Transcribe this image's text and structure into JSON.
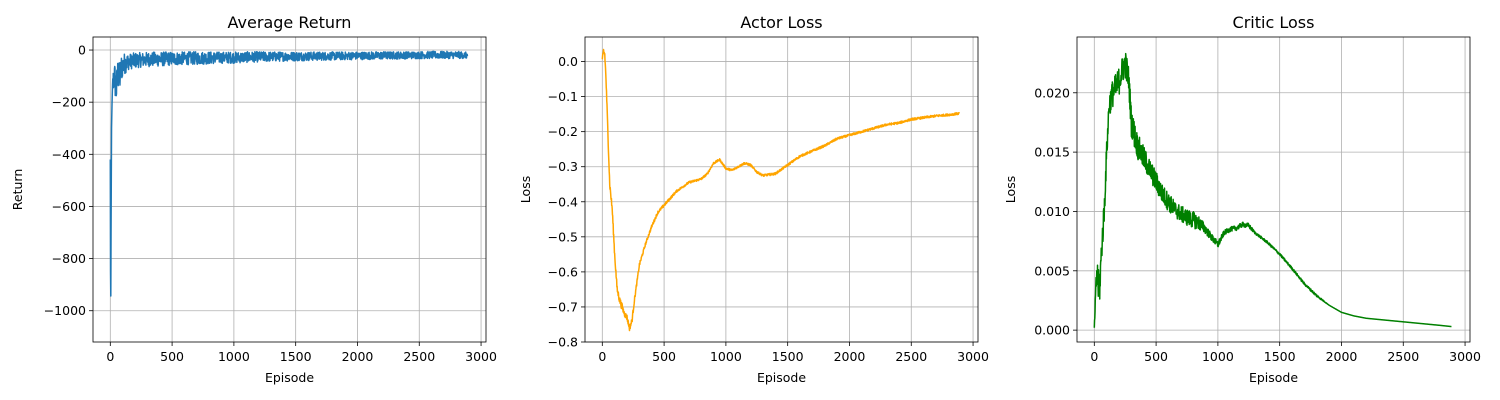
{
  "chart_data": [
    {
      "type": "line",
      "title": "Average Return",
      "xlabel": "Episode",
      "ylabel": "Return",
      "xlim": [
        -140,
        3040
      ],
      "ylim": [
        -1120,
        50
      ],
      "xticks": [
        0,
        500,
        1000,
        1500,
        2000,
        2500,
        3000
      ],
      "yticks": [
        0,
        -200,
        -400,
        -600,
        -800,
        -1000
      ],
      "ytick_labels": [
        "0",
        "−200",
        "−400",
        "−600",
        "−800",
        "−1000"
      ],
      "grid": true,
      "color": "#1f77b4",
      "series": [
        {
          "x": [
            0,
            3,
            6,
            10,
            15,
            20,
            30,
            40,
            50,
            60,
            75,
            90,
            100,
            120,
            150,
            200,
            250,
            300,
            400,
            500,
            600,
            700,
            800,
            900,
            1000,
            1200,
            1400,
            1600,
            1800,
            2000,
            2200,
            2400,
            2600,
            2800,
            2890
          ],
          "y": [
            -420,
            -1065,
            -700,
            -300,
            -180,
            -130,
            -100,
            -120,
            -150,
            -90,
            -110,
            -70,
            -60,
            -50,
            -45,
            -40,
            -38,
            -36,
            -35,
            -33,
            -32,
            -31,
            -30,
            -29,
            -29,
            -26,
            -25,
            -24,
            -23,
            -22,
            -21,
            -20,
            -19,
            -19,
            -20
          ],
          "noise": [
            0,
            0,
            0,
            0,
            0,
            40,
            60,
            70,
            70,
            60,
            60,
            55,
            45,
            40,
            30,
            30,
            28,
            28,
            28,
            26,
            25,
            25,
            24,
            22,
            22,
            20,
            18,
            17,
            16,
            15,
            15,
            14,
            14,
            14,
            12
          ]
        }
      ]
    },
    {
      "type": "line",
      "title": "Actor Loss",
      "xlabel": "Episode",
      "ylabel": "Loss",
      "xlim": [
        -140,
        3040
      ],
      "ylim": [
        -0.8,
        0.07
      ],
      "xticks": [
        0,
        500,
        1000,
        1500,
        2000,
        2500,
        3000
      ],
      "yticks": [
        0.0,
        -0.1,
        -0.2,
        -0.3,
        -0.4,
        -0.5,
        -0.6,
        -0.7,
        -0.8
      ],
      "ytick_labels": [
        "0.0",
        "−0.1",
        "−0.2",
        "−0.3",
        "−0.4",
        "−0.5",
        "−0.6",
        "−0.7",
        "−0.8"
      ],
      "grid": true,
      "color": "#ffa500",
      "series": [
        {
          "x": [
            0,
            10,
            20,
            30,
            45,
            60,
            80,
            100,
            120,
            140,
            160,
            180,
            200,
            220,
            240,
            260,
            280,
            300,
            350,
            400,
            450,
            500,
            600,
            700,
            800,
            850,
            900,
            950,
            1000,
            1050,
            1100,
            1150,
            1200,
            1250,
            1300,
            1400,
            1500,
            1600,
            1700,
            1800,
            1900,
            2000,
            2100,
            2200,
            2300,
            2400,
            2500,
            2600,
            2700,
            2800,
            2890
          ],
          "y": [
            0.0,
            0.03,
            0.02,
            -0.05,
            -0.2,
            -0.35,
            -0.42,
            -0.55,
            -0.65,
            -0.68,
            -0.7,
            -0.72,
            -0.73,
            -0.76,
            -0.74,
            -0.68,
            -0.63,
            -0.58,
            -0.52,
            -0.47,
            -0.43,
            -0.41,
            -0.37,
            -0.345,
            -0.335,
            -0.32,
            -0.29,
            -0.28,
            -0.305,
            -0.31,
            -0.3,
            -0.29,
            -0.295,
            -0.315,
            -0.325,
            -0.32,
            -0.295,
            -0.27,
            -0.255,
            -0.24,
            -0.22,
            -0.21,
            -0.2,
            -0.19,
            -0.18,
            -0.175,
            -0.165,
            -0.16,
            -0.155,
            -0.152,
            -0.148
          ],
          "noise": [
            0.01,
            0.01,
            0.01,
            0.01,
            0.01,
            0.01,
            0.01,
            0.01,
            0.01,
            0.01,
            0.01,
            0.008,
            0.008,
            0.008,
            0.008,
            0.006,
            0.005,
            0.005,
            0.004,
            0.004,
            0.004,
            0.004,
            0.003,
            0.003,
            0.003,
            0.003,
            0.003,
            0.003,
            0.003,
            0.003,
            0.003,
            0.003,
            0.003,
            0.003,
            0.003,
            0.003,
            0.003,
            0.003,
            0.003,
            0.003,
            0.003,
            0.003,
            0.003,
            0.003,
            0.003,
            0.003,
            0.003,
            0.003,
            0.003,
            0.003,
            0.003
          ]
        }
      ]
    },
    {
      "type": "line",
      "title": "Critic Loss",
      "xlabel": "Episode",
      "ylabel": "Loss",
      "xlim": [
        -140,
        3040
      ],
      "ylim": [
        -0.001,
        0.0247
      ],
      "xticks": [
        0,
        500,
        1000,
        1500,
        2000,
        2500,
        3000
      ],
      "yticks": [
        0.0,
        0.005,
        0.01,
        0.015,
        0.02
      ],
      "ytick_labels": [
        "0.000",
        "0.005",
        "0.010",
        "0.015",
        "0.020"
      ],
      "grid": true,
      "color": "#008000",
      "series": [
        {
          "x": [
            0,
            20,
            40,
            60,
            80,
            100,
            120,
            150,
            180,
            200,
            230,
            250,
            280,
            300,
            350,
            400,
            450,
            500,
            550,
            600,
            650,
            700,
            750,
            800,
            850,
            900,
            950,
            1000,
            1050,
            1100,
            1150,
            1200,
            1250,
            1300,
            1400,
            1500,
            1600,
            1700,
            1800,
            1900,
            2000,
            2100,
            2200,
            2400,
            2600,
            2800,
            2890
          ],
          "y": [
            0.0002,
            0.005,
            0.003,
            0.007,
            0.01,
            0.015,
            0.019,
            0.02,
            0.0205,
            0.021,
            0.022,
            0.0225,
            0.021,
            0.0175,
            0.0155,
            0.0145,
            0.0135,
            0.0125,
            0.0115,
            0.0108,
            0.0102,
            0.0098,
            0.0095,
            0.0093,
            0.009,
            0.0085,
            0.0078,
            0.0072,
            0.0082,
            0.0085,
            0.0086,
            0.0089,
            0.0088,
            0.0082,
            0.0074,
            0.0064,
            0.0052,
            0.0039,
            0.0029,
            0.0021,
            0.0015,
            0.0012,
            0.001,
            0.0008,
            0.0006,
            0.0004,
            0.0003
          ],
          "noise": [
            0.0,
            0.0015,
            0.0015,
            0.0012,
            0.0012,
            0.001,
            0.001,
            0.0012,
            0.0012,
            0.0012,
            0.0012,
            0.0012,
            0.0012,
            0.0012,
            0.0011,
            0.001,
            0.0009,
            0.0009,
            0.0008,
            0.0008,
            0.0007,
            0.0007,
            0.0007,
            0.0007,
            0.0006,
            0.0004,
            0.0003,
            0.0003,
            0.0002,
            0.0002,
            0.0002,
            0.0002,
            0.0002,
            0.0001,
            0.0001,
            0.0001,
            0.0001,
            0.0001,
            0.0001,
            0.0,
            0.0,
            0.0,
            0.0,
            0.0,
            0.0,
            0.0,
            0.0
          ]
        }
      ]
    }
  ]
}
